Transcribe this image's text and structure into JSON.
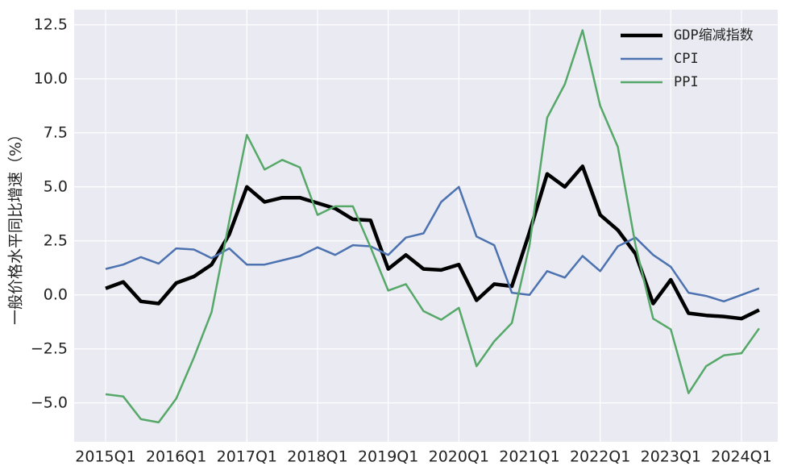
{
  "chart_data": {
    "type": "line",
    "y_label": "一般价格水平同比增速（%）",
    "categories": [
      "2015Q1",
      null,
      null,
      null,
      "2016Q1",
      null,
      null,
      null,
      "2017Q1",
      null,
      null,
      null,
      "2018Q1",
      null,
      null,
      null,
      "2019Q1",
      null,
      null,
      null,
      "2020Q1",
      null,
      null,
      null,
      "2021Q1",
      null,
      null,
      null,
      "2022Q1",
      null,
      null,
      null,
      "2023Q1",
      null,
      null,
      null,
      "2024Q1",
      null
    ],
    "series": [
      {
        "name": "GDP缩减指数",
        "color": "#000000",
        "values": [
          0.3,
          0.6,
          -0.3,
          -0.4,
          0.55,
          0.85,
          1.4,
          2.8,
          5.0,
          4.3,
          4.5,
          4.5,
          4.25,
          4.0,
          3.5,
          3.45,
          1.2,
          1.85,
          1.2,
          1.15,
          1.4,
          -0.25,
          0.5,
          0.4,
          2.9,
          5.6,
          5.0,
          5.95,
          3.7,
          3.0,
          1.9,
          -0.4,
          0.7,
          -0.85,
          -0.95,
          -1.0,
          -1.1,
          -0.7
        ]
      },
      {
        "name": "CPI",
        "color": "#4c72b0",
        "values": [
          1.2,
          1.4,
          1.75,
          1.45,
          2.15,
          2.1,
          1.7,
          2.15,
          1.4,
          1.4,
          1.6,
          1.8,
          2.2,
          1.85,
          2.3,
          2.25,
          1.85,
          2.65,
          2.85,
          4.3,
          5.0,
          2.7,
          2.3,
          0.1,
          0.0,
          1.1,
          0.8,
          1.8,
          1.1,
          2.25,
          2.65,
          1.85,
          1.3,
          0.1,
          -0.05,
          -0.3,
          0.0,
          0.3
        ]
      },
      {
        "name": "PPI",
        "color": "#55a868",
        "values": [
          -4.6,
          -4.7,
          -5.75,
          -5.9,
          -4.8,
          -2.9,
          -0.8,
          3.4,
          7.4,
          5.8,
          6.25,
          5.9,
          3.7,
          4.1,
          4.1,
          2.2,
          0.2,
          0.5,
          -0.75,
          -1.15,
          -0.6,
          -3.3,
          -2.15,
          -1.3,
          2.3,
          8.2,
          9.75,
          12.25,
          8.75,
          6.85,
          2.3,
          -1.1,
          -1.6,
          -4.55,
          -3.3,
          -2.8,
          -2.7,
          -1.55
        ]
      }
    ],
    "ylim": [
      -6.8,
      13.2
    ],
    "yticks": [
      {
        "value": -5,
        "label": "−5.0"
      },
      {
        "value": -2.5,
        "label": "−2.5"
      },
      {
        "value": 0,
        "label": "0.0"
      },
      2.5,
      {
        "value": 5,
        "label": "5.0"
      },
      7.5,
      {
        "value": 10,
        "label": "10.0"
      },
      12.5
    ],
    "grid": true,
    "legend": "upper right"
  }
}
